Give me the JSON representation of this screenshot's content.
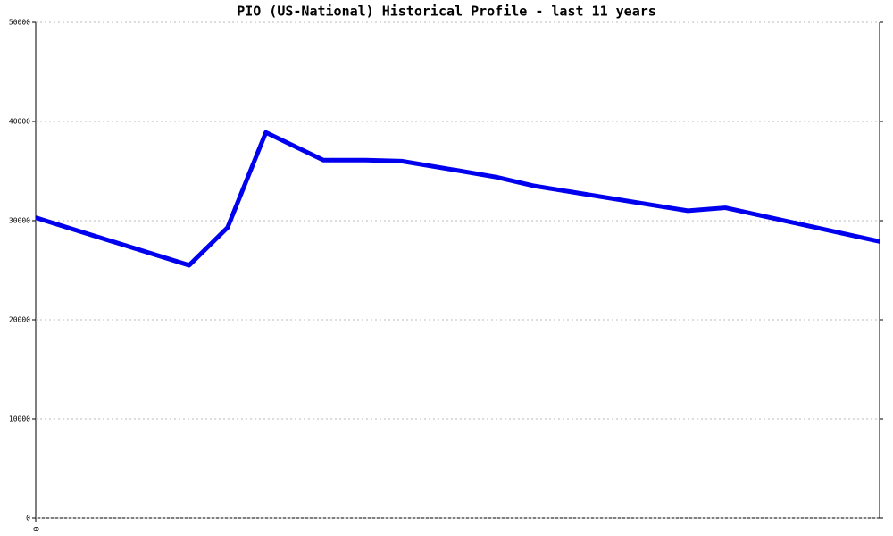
{
  "chart_data": {
    "type": "line",
    "title": "PIO (US-National) Historical Profile - last 11 years",
    "x": [
      0,
      2.0,
      2.5,
      3.0,
      3.75,
      4.3,
      4.77,
      5.47,
      6.0,
      6.5,
      8.5,
      8.99,
      11
    ],
    "series": [
      {
        "color": "#0000ee",
        "values": [
          30300,
          25500,
          29300,
          38900,
          36100,
          36100,
          36000,
          35100,
          34400,
          33500,
          31000,
          31300,
          27900
        ]
      }
    ],
    "xlim": [
      0,
      11
    ],
    "xticks": [
      0
    ],
    "ylim": [
      0,
      50000
    ],
    "yticks": [
      0,
      10000,
      20000,
      30000,
      40000,
      50000
    ],
    "grid": true
  }
}
